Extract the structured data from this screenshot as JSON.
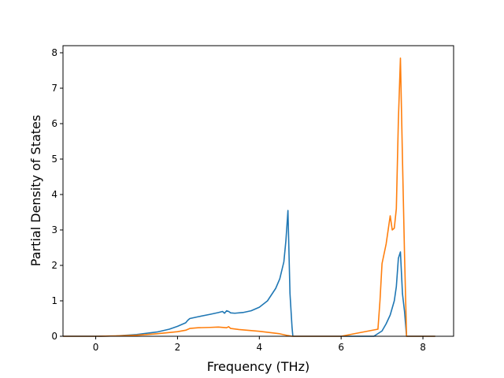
{
  "chart_data": {
    "type": "line",
    "title": "",
    "xlabel": "Frequency (THz)",
    "ylabel": "Partial Density of States",
    "xlim": [
      -0.8,
      8.75
    ],
    "ylim": [
      0,
      8.2
    ],
    "xticks": [
      0,
      2,
      4,
      6,
      8
    ],
    "yticks": [
      0,
      1,
      2,
      3,
      4,
      5,
      6,
      7,
      8
    ],
    "grid": false,
    "legend": "none",
    "series": [
      {
        "color": "#1f77b4",
        "x": [
          -0.8,
          0.0,
          0.5,
          1.0,
          1.5,
          1.8,
          2.0,
          2.2,
          2.25,
          2.3,
          2.5,
          2.8,
          3.0,
          3.1,
          3.15,
          3.2,
          3.25,
          3.3,
          3.4,
          3.6,
          3.8,
          4.0,
          4.2,
          4.4,
          4.5,
          4.6,
          4.65,
          4.7,
          4.72,
          4.75,
          4.8,
          4.82,
          5.0,
          6.0,
          6.8,
          7.0,
          7.1,
          7.2,
          7.3,
          7.35,
          7.4,
          7.45,
          7.5,
          7.55,
          7.6,
          7.7,
          8.3
        ],
        "y": [
          0,
          0,
          0.01,
          0.05,
          0.12,
          0.2,
          0.28,
          0.38,
          0.45,
          0.5,
          0.55,
          0.62,
          0.67,
          0.7,
          0.65,
          0.72,
          0.7,
          0.66,
          0.65,
          0.67,
          0.72,
          0.82,
          1.0,
          1.35,
          1.62,
          2.1,
          2.7,
          3.55,
          2.6,
          1.2,
          0.25,
          0.0,
          0.0,
          0.0,
          0.0,
          0.15,
          0.35,
          0.6,
          1.0,
          1.4,
          2.2,
          2.38,
          1.2,
          0.7,
          0.0,
          0.0,
          0.0
        ]
      },
      {
        "color": "#ff7f0e",
        "x": [
          -0.8,
          0.0,
          0.5,
          1.0,
          1.5,
          2.0,
          2.2,
          2.3,
          2.5,
          2.8,
          3.0,
          3.2,
          3.25,
          3.3,
          3.5,
          4.0,
          4.5,
          4.7,
          4.8,
          5.0,
          6.0,
          6.9,
          6.95,
          7.0,
          7.1,
          7.2,
          7.25,
          7.3,
          7.35,
          7.4,
          7.45,
          7.5,
          7.55,
          7.6,
          7.7,
          8.3
        ],
        "y": [
          0,
          0,
          0.01,
          0.03,
          0.07,
          0.13,
          0.17,
          0.22,
          0.24,
          0.25,
          0.26,
          0.24,
          0.27,
          0.22,
          0.19,
          0.14,
          0.07,
          0.02,
          0.0,
          0.0,
          0.0,
          0.2,
          1.0,
          2.05,
          2.6,
          3.4,
          3.0,
          3.05,
          3.6,
          6.1,
          7.85,
          5.0,
          2.3,
          0.0,
          0.0,
          0.0
        ]
      }
    ]
  }
}
